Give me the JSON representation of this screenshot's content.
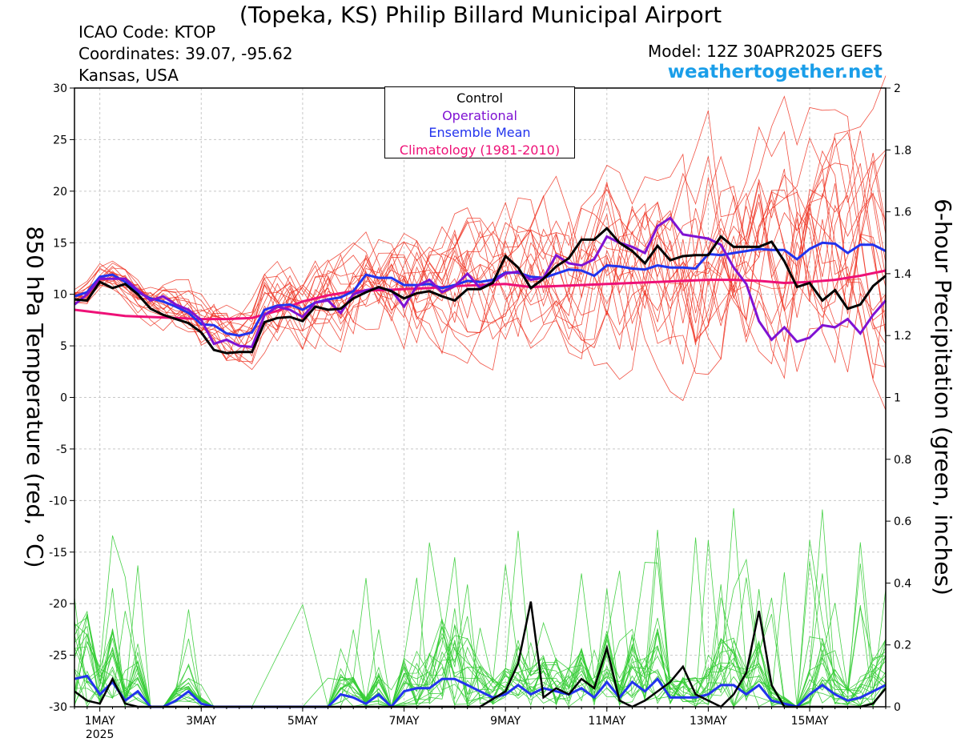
{
  "header": {
    "title": "(Topeka, KS) Philip Billard Municipal Airport",
    "icao": "ICAO Code: KTOP",
    "coordinates": "Coordinates: 39.07, -95.62",
    "region": "Kansas, USA",
    "model": "Model: 12Z 30APR2025 GEFS",
    "site": "weathertogether.net"
  },
  "colors": {
    "control": "#000000",
    "operational": "#7f12d3",
    "ensemble_mean": "#2233ee",
    "climatology": "#ee1177",
    "ensemble_temp": "#ee3322",
    "ensemble_precip": "#33cc33"
  },
  "legend": [
    {
      "label": "Control",
      "color": "#000000"
    },
    {
      "label": "Operational",
      "color": "#7f12d3"
    },
    {
      "label": "Ensemble Mean",
      "color": "#2233ee"
    },
    {
      "label": "Climatology (1981-2010)",
      "color": "#ee1177"
    }
  ],
  "chart_data": {
    "type": "line",
    "x_unit": "days since 2025-04-30 12Z (6-hourly)",
    "x_range": [
      0.5,
      16.5
    ],
    "xticks": [
      {
        "x": 1,
        "label": "1MAY",
        "sub": "2025"
      },
      {
        "x": 3,
        "label": "3MAY"
      },
      {
        "x": 5,
        "label": "5MAY"
      },
      {
        "x": 7,
        "label": "7MAY"
      },
      {
        "x": 9,
        "label": "9MAY"
      },
      {
        "x": 11,
        "label": "11MAY"
      },
      {
        "x": 13,
        "label": "13MAY"
      },
      {
        "x": 15,
        "label": "15MAY"
      }
    ],
    "y_left": {
      "label": "850 hPa Temperature (red, °C)",
      "range": [
        -30,
        30
      ],
      "ticks": [
        -30,
        -25,
        -20,
        -15,
        -10,
        -5,
        0,
        5,
        10,
        15,
        20,
        25,
        30
      ]
    },
    "y_right": {
      "label": "6-hour Precipitation (green, inches)",
      "range": [
        0,
        2
      ],
      "ticks": [
        "0",
        "0.2",
        "0.4",
        "0.6",
        "0.8",
        "1",
        "1.2",
        "1.4",
        "1.6",
        "1.8",
        "2"
      ]
    },
    "grid": true,
    "legend_position": "top-center",
    "temperature": {
      "control": [
        [
          0.5,
          9.5
        ],
        [
          0.75,
          9.4
        ],
        [
          1.0,
          11.2
        ],
        [
          1.25,
          10.6
        ],
        [
          1.5,
          11.0
        ],
        [
          1.75,
          10.0
        ],
        [
          2.0,
          8.6
        ],
        [
          2.25,
          8.0
        ],
        [
          2.5,
          7.6
        ],
        [
          2.75,
          7.2
        ],
        [
          3.0,
          6.3
        ],
        [
          3.25,
          4.6
        ],
        [
          3.5,
          4.3
        ],
        [
          3.75,
          4.4
        ],
        [
          4.0,
          4.4
        ],
        [
          4.25,
          7.3
        ],
        [
          4.5,
          7.7
        ],
        [
          4.75,
          7.8
        ],
        [
          5.0,
          7.4
        ],
        [
          5.25,
          8.8
        ],
        [
          5.5,
          8.5
        ],
        [
          5.75,
          8.6
        ],
        [
          6.0,
          9.6
        ],
        [
          6.25,
          10.2
        ],
        [
          6.5,
          10.7
        ],
        [
          6.75,
          10.3
        ],
        [
          7.0,
          9.6
        ],
        [
          7.25,
          10.1
        ],
        [
          7.5,
          10.3
        ],
        [
          7.75,
          9.8
        ],
        [
          8.0,
          9.4
        ],
        [
          8.25,
          10.5
        ],
        [
          8.5,
          10.5
        ],
        [
          8.75,
          11.1
        ],
        [
          9.0,
          13.7
        ],
        [
          9.25,
          12.6
        ],
        [
          9.5,
          10.6
        ],
        [
          9.75,
          11.5
        ],
        [
          10.0,
          12.7
        ],
        [
          10.25,
          13.5
        ],
        [
          10.5,
          15.3
        ],
        [
          10.75,
          15.3
        ],
        [
          11.0,
          16.4
        ],
        [
          11.25,
          15.0
        ],
        [
          11.5,
          14.2
        ],
        [
          11.75,
          13.0
        ],
        [
          12.0,
          14.7
        ],
        [
          12.25,
          13.3
        ],
        [
          12.5,
          13.7
        ],
        [
          12.75,
          13.8
        ],
        [
          13.0,
          13.8
        ],
        [
          13.25,
          15.6
        ],
        [
          13.5,
          14.6
        ],
        [
          13.75,
          14.6
        ],
        [
          14.0,
          14.6
        ],
        [
          14.25,
          15.1
        ],
        [
          14.5,
          13.2
        ],
        [
          14.75,
          10.7
        ],
        [
          15.0,
          11.1
        ],
        [
          15.25,
          9.4
        ],
        [
          15.5,
          10.4
        ],
        [
          15.75,
          8.6
        ],
        [
          16.0,
          9.0
        ],
        [
          16.25,
          10.8
        ],
        [
          16.5,
          11.8
        ]
      ],
      "operational": [
        [
          0.5,
          9.0
        ],
        [
          0.75,
          10.0
        ],
        [
          1.0,
          11.5
        ],
        [
          1.25,
          11.5
        ],
        [
          1.5,
          11.5
        ],
        [
          1.75,
          10.4
        ],
        [
          2.0,
          9.4
        ],
        [
          2.25,
          9.8
        ],
        [
          2.5,
          9.0
        ],
        [
          2.75,
          8.5
        ],
        [
          3.0,
          7.5
        ],
        [
          3.25,
          5.2
        ],
        [
          3.5,
          5.6
        ],
        [
          3.75,
          5.0
        ],
        [
          4.0,
          4.9
        ],
        [
          4.25,
          8.0
        ],
        [
          4.5,
          8.8
        ],
        [
          4.75,
          8.5
        ],
        [
          5.0,
          7.8
        ],
        [
          5.25,
          9.2
        ],
        [
          5.5,
          9.4
        ],
        [
          5.75,
          8.2
        ],
        [
          6.0,
          10.0
        ],
        [
          6.25,
          10.4
        ],
        [
          6.5,
          10.6
        ],
        [
          6.75,
          10.4
        ],
        [
          7.0,
          8.8
        ],
        [
          7.25,
          10.8
        ],
        [
          7.5,
          11.4
        ],
        [
          7.75,
          10.2
        ],
        [
          8.0,
          10.8
        ],
        [
          8.25,
          12.0
        ],
        [
          8.5,
          10.6
        ],
        [
          8.75,
          11.2
        ],
        [
          9.0,
          12.0
        ],
        [
          9.25,
          12.2
        ],
        [
          9.5,
          11.4
        ],
        [
          9.75,
          11.6
        ],
        [
          10.0,
          13.8
        ],
        [
          10.25,
          13.0
        ],
        [
          10.5,
          12.8
        ],
        [
          10.75,
          13.4
        ],
        [
          11.0,
          15.6
        ],
        [
          11.25,
          15.0
        ],
        [
          11.5,
          14.6
        ],
        [
          11.75,
          14.0
        ],
        [
          12.0,
          16.6
        ],
        [
          12.25,
          17.4
        ],
        [
          12.5,
          15.8
        ],
        [
          12.75,
          15.6
        ],
        [
          13.0,
          15.4
        ],
        [
          13.25,
          14.8
        ],
        [
          13.5,
          12.6
        ],
        [
          13.75,
          11.0
        ],
        [
          14.0,
          7.4
        ],
        [
          14.25,
          5.6
        ],
        [
          14.5,
          6.8
        ],
        [
          14.75,
          5.4
        ],
        [
          15.0,
          5.8
        ],
        [
          15.25,
          7.0
        ],
        [
          15.5,
          6.8
        ],
        [
          15.75,
          7.6
        ],
        [
          16.0,
          6.2
        ],
        [
          16.25,
          8.0
        ],
        [
          16.5,
          9.4
        ]
      ],
      "ensemble_mean": [
        [
          0.5,
          9.8
        ],
        [
          0.75,
          10.2
        ],
        [
          1.0,
          11.7
        ],
        [
          1.25,
          11.9
        ],
        [
          1.5,
          11.2
        ],
        [
          1.75,
          10.2
        ],
        [
          2.0,
          9.6
        ],
        [
          2.25,
          9.3
        ],
        [
          2.5,
          8.8
        ],
        [
          2.75,
          8.2
        ],
        [
          3.0,
          7.1
        ],
        [
          3.25,
          7.0
        ],
        [
          3.5,
          6.2
        ],
        [
          3.75,
          6.0
        ],
        [
          4.0,
          6.3
        ],
        [
          4.25,
          8.5
        ],
        [
          4.5,
          8.9
        ],
        [
          4.75,
          9.0
        ],
        [
          5.0,
          8.5
        ],
        [
          5.25,
          9.2
        ],
        [
          5.5,
          9.5
        ],
        [
          5.75,
          9.7
        ],
        [
          6.0,
          10.3
        ],
        [
          6.25,
          11.9
        ],
        [
          6.5,
          11.6
        ],
        [
          6.75,
          11.6
        ],
        [
          7.0,
          10.9
        ],
        [
          7.25,
          10.9
        ],
        [
          7.5,
          11.0
        ],
        [
          7.75,
          10.6
        ],
        [
          8.0,
          10.9
        ],
        [
          8.25,
          11.3
        ],
        [
          8.5,
          11.2
        ],
        [
          8.75,
          11.4
        ],
        [
          9.0,
          12.1
        ],
        [
          9.25,
          12.1
        ],
        [
          9.5,
          11.7
        ],
        [
          9.75,
          11.6
        ],
        [
          10.0,
          12.0
        ],
        [
          10.25,
          12.4
        ],
        [
          10.5,
          12.3
        ],
        [
          10.75,
          11.8
        ],
        [
          11.0,
          12.8
        ],
        [
          11.25,
          12.7
        ],
        [
          11.5,
          12.5
        ],
        [
          11.75,
          12.4
        ],
        [
          12.0,
          12.8
        ],
        [
          12.25,
          12.6
        ],
        [
          12.5,
          12.6
        ],
        [
          12.75,
          12.5
        ],
        [
          13.0,
          13.9
        ],
        [
          13.25,
          13.8
        ],
        [
          13.5,
          14.0
        ],
        [
          13.75,
          14.2
        ],
        [
          14.0,
          14.4
        ],
        [
          14.25,
          14.3
        ],
        [
          14.5,
          14.3
        ],
        [
          14.75,
          13.4
        ],
        [
          15.0,
          14.4
        ],
        [
          15.25,
          15.0
        ],
        [
          15.5,
          14.9
        ],
        [
          15.75,
          14.0
        ],
        [
          16.0,
          14.8
        ],
        [
          16.25,
          14.8
        ],
        [
          16.5,
          14.2
        ]
      ],
      "climatology": [
        [
          0.5,
          8.5
        ],
        [
          1.0,
          8.2
        ],
        [
          1.5,
          7.9
        ],
        [
          2.0,
          7.8
        ],
        [
          2.5,
          7.7
        ],
        [
          3.0,
          7.6
        ],
        [
          3.5,
          7.6
        ],
        [
          4.0,
          7.7
        ],
        [
          4.5,
          8.4
        ],
        [
          5.0,
          9.3
        ],
        [
          5.5,
          9.9
        ],
        [
          6.0,
          10.3
        ],
        [
          6.5,
          10.4
        ],
        [
          7.0,
          10.5
        ],
        [
          7.5,
          10.6
        ],
        [
          8.0,
          10.8
        ],
        [
          8.5,
          10.9
        ],
        [
          9.0,
          11.0
        ],
        [
          9.5,
          10.7
        ],
        [
          10.0,
          10.8
        ],
        [
          10.5,
          10.9
        ],
        [
          11.0,
          11.0
        ],
        [
          11.5,
          11.1
        ],
        [
          12.0,
          11.2
        ],
        [
          12.5,
          11.3
        ],
        [
          13.0,
          11.4
        ],
        [
          13.5,
          11.4
        ],
        [
          14.0,
          11.3
        ],
        [
          14.5,
          11.1
        ],
        [
          15.0,
          11.2
        ],
        [
          15.5,
          11.4
        ],
        [
          16.0,
          11.8
        ],
        [
          16.5,
          12.3
        ]
      ]
    },
    "precipitation": {
      "control": [
        [
          0.5,
          0.05
        ],
        [
          0.75,
          0.02
        ],
        [
          1.0,
          0.01
        ],
        [
          1.25,
          0.09
        ],
        [
          1.5,
          0.01
        ],
        [
          1.75,
          0.0
        ],
        [
          2.0,
          0.0
        ],
        [
          2.5,
          0.0
        ],
        [
          3.0,
          0.0
        ],
        [
          4.0,
          0.0
        ],
        [
          5.0,
          0.0
        ],
        [
          6.0,
          0.0
        ],
        [
          7.0,
          0.0
        ],
        [
          8.0,
          0.0
        ],
        [
          8.5,
          0.0
        ],
        [
          9.0,
          0.05
        ],
        [
          9.25,
          0.14
        ],
        [
          9.5,
          0.34
        ],
        [
          9.75,
          0.03
        ],
        [
          10.0,
          0.06
        ],
        [
          10.25,
          0.04
        ],
        [
          10.5,
          0.09
        ],
        [
          10.75,
          0.06
        ],
        [
          11.0,
          0.19
        ],
        [
          11.25,
          0.02
        ],
        [
          11.5,
          0.0
        ],
        [
          11.75,
          0.02
        ],
        [
          12.0,
          0.05
        ],
        [
          12.25,
          0.08
        ],
        [
          12.5,
          0.13
        ],
        [
          12.75,
          0.04
        ],
        [
          13.0,
          0.02
        ],
        [
          13.25,
          0.0
        ],
        [
          13.5,
          0.04
        ],
        [
          13.75,
          0.11
        ],
        [
          14.0,
          0.31
        ],
        [
          14.25,
          0.07
        ],
        [
          14.5,
          0.0
        ],
        [
          15.0,
          0.0
        ],
        [
          15.5,
          0.0
        ],
        [
          16.0,
          0.0
        ],
        [
          16.25,
          0.01
        ],
        [
          16.5,
          0.06
        ]
      ],
      "ensemble_mean": [
        [
          0.5,
          0.09
        ],
        [
          0.75,
          0.1
        ],
        [
          1.0,
          0.04
        ],
        [
          1.25,
          0.08
        ],
        [
          1.5,
          0.02
        ],
        [
          1.75,
          0.05
        ],
        [
          2.0,
          0.0
        ],
        [
          2.25,
          0.0
        ],
        [
          2.5,
          0.02
        ],
        [
          2.75,
          0.05
        ],
        [
          3.0,
          0.01
        ],
        [
          3.25,
          0.0
        ],
        [
          4.0,
          0.0
        ],
        [
          5.0,
          0.0
        ],
        [
          5.5,
          0.0
        ],
        [
          5.75,
          0.04
        ],
        [
          6.0,
          0.03
        ],
        [
          6.25,
          0.01
        ],
        [
          6.5,
          0.04
        ],
        [
          6.75,
          0.0
        ],
        [
          7.0,
          0.05
        ],
        [
          7.25,
          0.06
        ],
        [
          7.5,
          0.06
        ],
        [
          7.75,
          0.09
        ],
        [
          8.0,
          0.09
        ],
        [
          8.25,
          0.07
        ],
        [
          8.5,
          0.05
        ],
        [
          8.75,
          0.03
        ],
        [
          9.0,
          0.04
        ],
        [
          9.25,
          0.07
        ],
        [
          9.5,
          0.04
        ],
        [
          9.75,
          0.06
        ],
        [
          10.0,
          0.05
        ],
        [
          10.25,
          0.04
        ],
        [
          10.5,
          0.06
        ],
        [
          10.75,
          0.03
        ],
        [
          11.0,
          0.08
        ],
        [
          11.25,
          0.03
        ],
        [
          11.5,
          0.08
        ],
        [
          11.75,
          0.05
        ],
        [
          12.0,
          0.09
        ],
        [
          12.25,
          0.03
        ],
        [
          12.5,
          0.03
        ],
        [
          12.75,
          0.03
        ],
        [
          13.0,
          0.04
        ],
        [
          13.25,
          0.07
        ],
        [
          13.5,
          0.07
        ],
        [
          13.75,
          0.04
        ],
        [
          14.0,
          0.07
        ],
        [
          14.25,
          0.02
        ],
        [
          14.5,
          0.01
        ],
        [
          14.75,
          0.0
        ],
        [
          15.0,
          0.04
        ],
        [
          15.25,
          0.07
        ],
        [
          15.5,
          0.04
        ],
        [
          15.75,
          0.02
        ],
        [
          16.0,
          0.03
        ],
        [
          16.25,
          0.05
        ],
        [
          16.5,
          0.07
        ]
      ]
    }
  }
}
